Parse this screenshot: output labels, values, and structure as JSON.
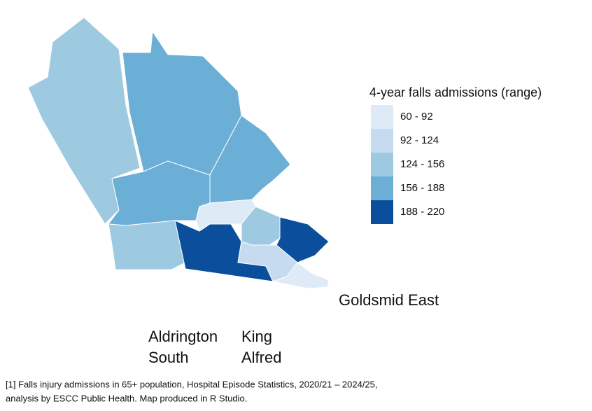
{
  "legend": {
    "title": "4-year falls admissions (range)",
    "items": [
      {
        "label": "60 - 92",
        "color": "#deebf7"
      },
      {
        "label": "92 - 124",
        "color": "#c6dbef"
      },
      {
        "label": "124 - 156",
        "color": "#9ecae1"
      },
      {
        "label": "156 - 188",
        "color": "#6baed6"
      },
      {
        "label": "188 - 220",
        "color": "#0b4f9c"
      }
    ]
  },
  "labels": [
    {
      "lines": [
        "Goldsmid East"
      ]
    },
    {
      "lines": [
        "Aldrington",
        "South"
      ]
    },
    {
      "lines": [
        "King",
        "Alfred"
      ]
    }
  ],
  "footnote": {
    "lines": [
      "[1] Falls injury admissions in 65+ population, Hospital Episode Statistics, 2020/21 – 2024/25,",
      "analysis by ESCC Public Health. Map produced in R Studio."
    ]
  }
}
